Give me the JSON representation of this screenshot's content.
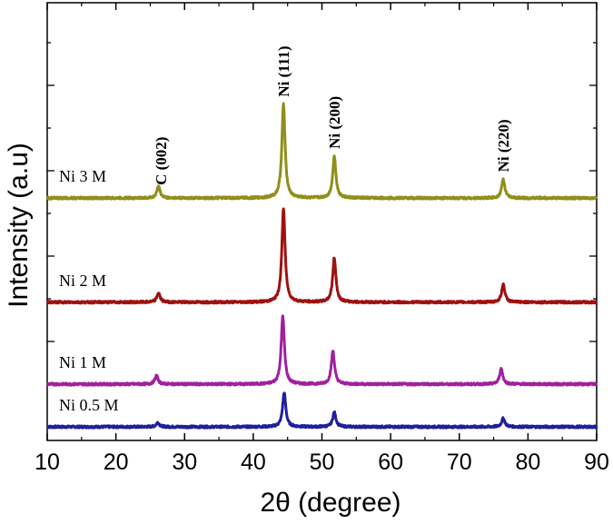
{
  "chart_data": {
    "type": "line",
    "xlabel": "2θ (degree)",
    "ylabel": "Intensity (a.u)",
    "xlim": [
      10,
      90
    ],
    "x_ticks": [
      "10",
      "20",
      "30",
      "40",
      "50",
      "60",
      "70",
      "80",
      "90"
    ],
    "y_ticks_labeled": false,
    "grid": false,
    "series": [
      {
        "name": "Ni 0.5 M",
        "color": "#1f1f9e",
        "baseline": 0.0,
        "peaks": [
          [
            26.1,
            0.1
          ],
          [
            44.5,
            0.8
          ],
          [
            51.8,
            0.34
          ],
          [
            76.4,
            0.2
          ]
        ]
      },
      {
        "name": "Ni 1 M",
        "color": "#a020a0",
        "baseline": 1.0,
        "peaks": [
          [
            25.9,
            0.2
          ],
          [
            44.3,
            1.6
          ],
          [
            51.6,
            0.78
          ],
          [
            76.1,
            0.36
          ]
        ]
      },
      {
        "name": "Ni 2 M",
        "color": "#a01010",
        "baseline": 2.92,
        "peaks": [
          [
            26.2,
            0.22
          ],
          [
            44.4,
            2.2
          ],
          [
            51.8,
            1.04
          ],
          [
            76.4,
            0.42
          ]
        ]
      },
      {
        "name": "Ni 3 M",
        "color": "#8f8f1a",
        "baseline": 5.36,
        "peaks": [
          [
            26.2,
            0.28
          ],
          [
            44.4,
            2.2
          ],
          [
            51.8,
            0.98
          ],
          [
            76.4,
            0.44
          ]
        ]
      }
    ],
    "annotations": [
      {
        "text": "C (002)",
        "x": 26.5
      },
      {
        "text": "Ni (111)",
        "x": 44.4
      },
      {
        "text": "Ni (200)",
        "x": 51.8
      },
      {
        "text": "Ni (220)",
        "x": 76.4
      }
    ]
  }
}
